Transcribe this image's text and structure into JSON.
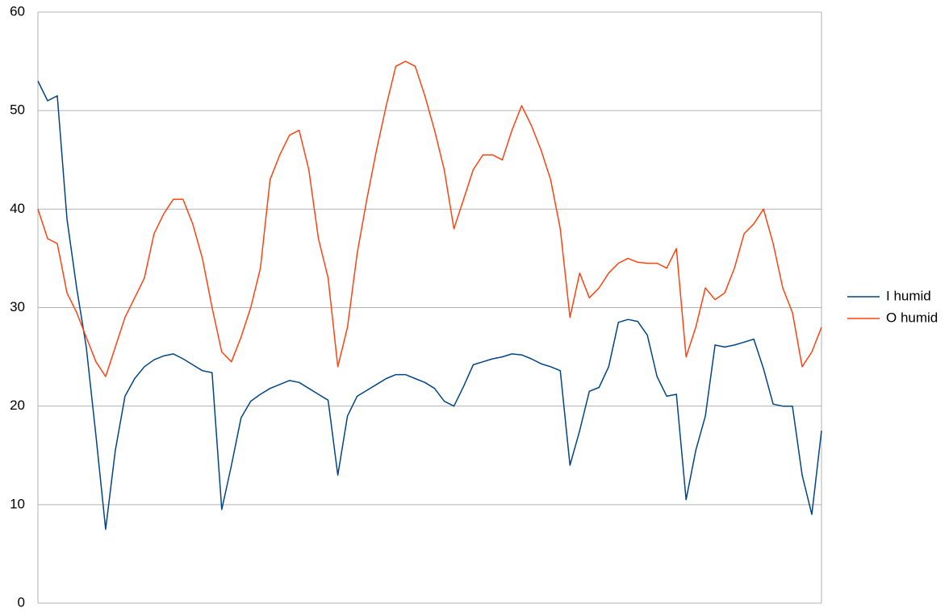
{
  "chart_data": {
    "type": "line",
    "series": [
      {
        "name": "I humid",
        "color": "#004586",
        "values": [
          53,
          51,
          51.5,
          39,
          32,
          26,
          17,
          7.5,
          15.5,
          21,
          22.8,
          24,
          24.7,
          25.1,
          25.3,
          24.8,
          24.2,
          23.6,
          23.4,
          9.5,
          14,
          18.8,
          20.5,
          21.2,
          21.8,
          22.2,
          22.6,
          22.4,
          21.8,
          21.2,
          20.6,
          13,
          19,
          21,
          21.6,
          22.2,
          22.8,
          23.2,
          23.2,
          22.8,
          22.4,
          21.8,
          20.5,
          20,
          22,
          24.2,
          24.5,
          24.8,
          25,
          25.3,
          25.2,
          24.8,
          24.3,
          24,
          23.6,
          14,
          17.5,
          21.5,
          21.9,
          24,
          28.5,
          28.8,
          28.6,
          27.2,
          23,
          21,
          21.2,
          10.5,
          15.5,
          19,
          26.2,
          26,
          26.2,
          26.5,
          26.8,
          23.8,
          20.2,
          20,
          20,
          13,
          9,
          17.5
        ]
      },
      {
        "name": "O humid",
        "color": "#ff420e",
        "values": [
          40,
          37,
          36.5,
          31.5,
          29.5,
          27,
          24.5,
          23,
          26,
          29,
          31,
          33,
          37.5,
          39.5,
          41,
          41,
          38.5,
          35,
          30,
          25.5,
          24.5,
          27,
          30,
          34,
          43,
          45.5,
          47.5,
          48,
          44,
          37,
          33,
          24,
          28,
          35.5,
          41,
          46,
          50.5,
          54.5,
          55,
          54.5,
          51.5,
          48,
          44,
          38,
          41,
          44,
          45.5,
          45.5,
          45,
          48,
          50.5,
          48.5,
          46,
          43,
          38,
          29,
          33.5,
          31,
          32,
          33.5,
          34.5,
          35,
          34.6,
          34.5,
          34.5,
          34,
          36,
          25,
          28,
          32,
          30.8,
          31.5,
          34,
          37.5,
          38.5,
          40,
          36.5,
          32,
          29.5,
          24,
          25.5,
          28
        ]
      }
    ],
    "ylim": [
      0,
      60
    ],
    "yticks": [
      0,
      10,
      20,
      30,
      40,
      50,
      60
    ],
    "grid": true,
    "legend": "right"
  }
}
